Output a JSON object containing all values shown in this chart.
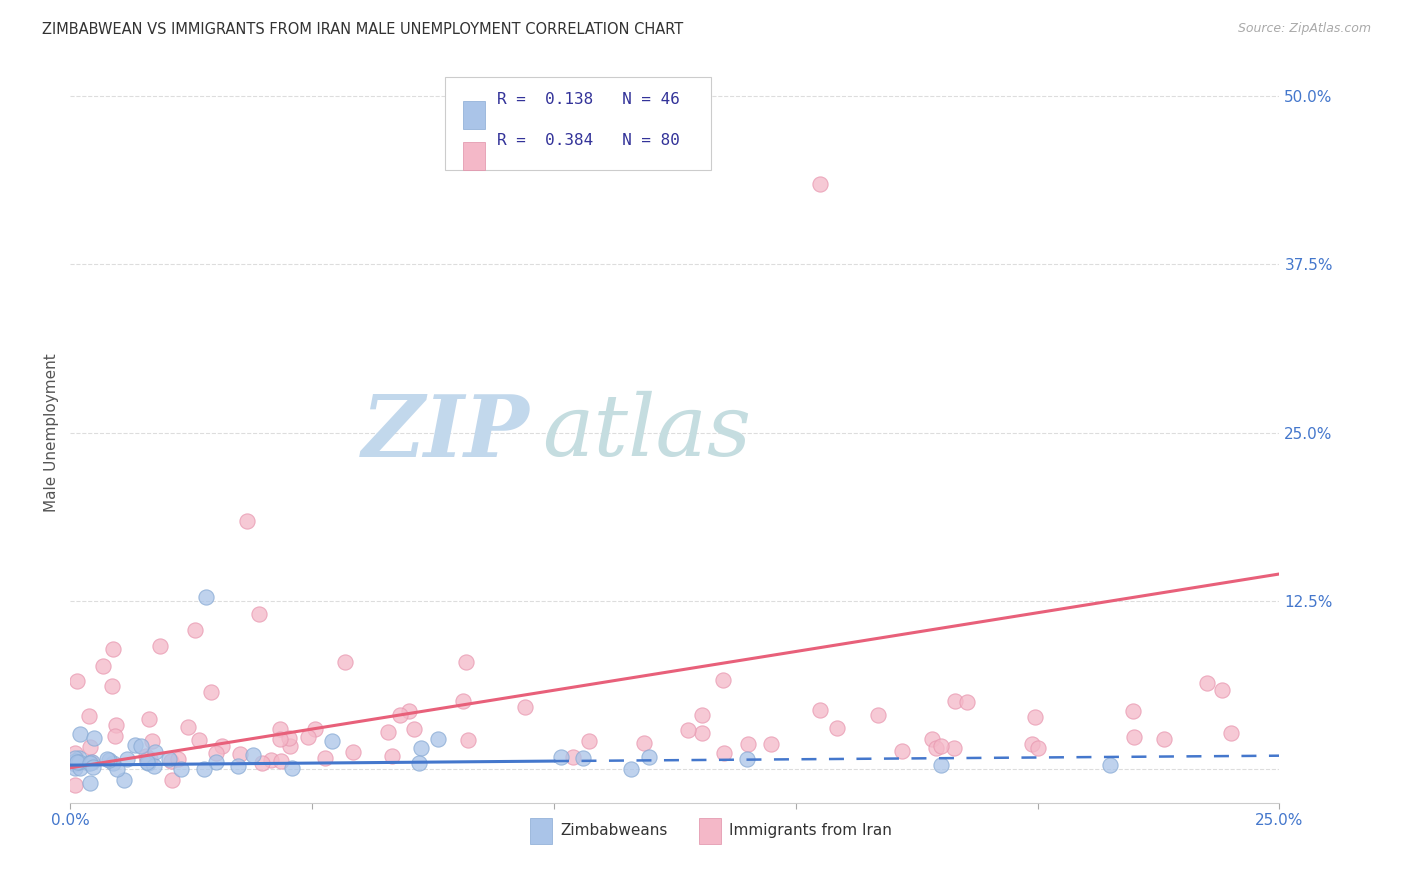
{
  "title": "ZIMBABWEAN VS IMMIGRANTS FROM IRAN MALE UNEMPLOYMENT CORRELATION CHART",
  "source": "Source: ZipAtlas.com",
  "ylabel": "Male Unemployment",
  "xlim": [
    0.0,
    0.25
  ],
  "ylim": [
    -0.025,
    0.525
  ],
  "xtick_vals": [
    0.0,
    0.05,
    0.1,
    0.15,
    0.2,
    0.25
  ],
  "xtick_labels": [
    "0.0%",
    "",
    "",
    "",
    "",
    "25.0%"
  ],
  "ytick_vals": [
    0.0,
    0.125,
    0.25,
    0.375,
    0.5
  ],
  "ytick_labels": [
    "",
    "12.5%",
    "25.0%",
    "37.5%",
    "50.0%"
  ],
  "grid_color": "#dddddd",
  "background_color": "#ffffff",
  "watermark_zip": "ZIP",
  "watermark_atlas": "atlas",
  "watermark_color_zip": "#c8dff0",
  "watermark_color_atlas": "#c8dde8",
  "legend_r1": "R =  0.138",
  "legend_n1": "N = 46",
  "legend_r2": "R =  0.384",
  "legend_n2": "N = 80",
  "legend_color1": "#aac4e8",
  "legend_color2": "#f4b8c8",
  "legend_label1": "Zimbabweans",
  "legend_label2": "Immigrants from Iran",
  "blue_line_color": "#4477cc",
  "pink_line_color": "#e8607a",
  "scatter_blue_color": "#aac4e8",
  "scatter_pink_color": "#f4b8c8",
  "scatter_size": 120,
  "scatter_alpha": 0.75,
  "scatter_linewidth": 0.8,
  "scatter_edgecolor_blue": "#88aad4",
  "scatter_edgecolor_pink": "#e898b0"
}
